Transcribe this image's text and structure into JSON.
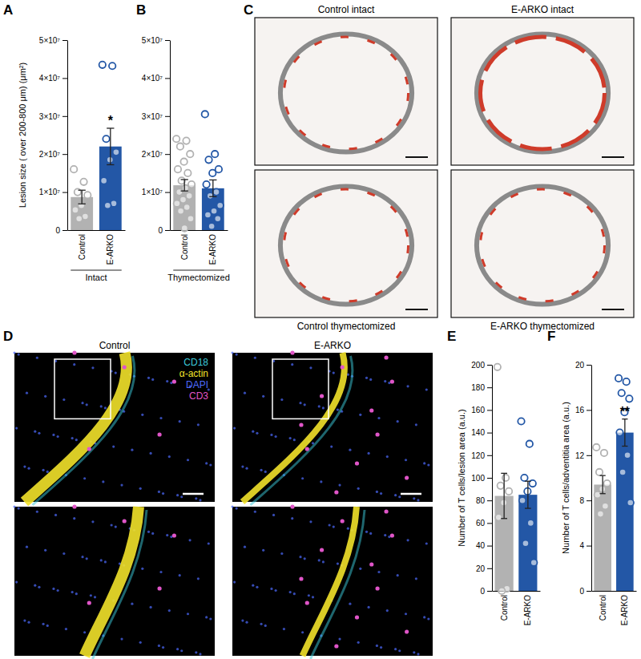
{
  "chart_data": [
    {
      "type": "bar",
      "title": "A",
      "categories": [
        "Control",
        "E-ARKO"
      ],
      "values": [
        8700000,
        22000000
      ],
      "errors": [
        1800000,
        4800000
      ],
      "points": [
        [
          16000000,
          12700000,
          10000000,
          9200000,
          6500000,
          5300000,
          3600000,
          3000000
        ],
        [
          43500000,
          43200000,
          24000000,
          20500000,
          18500000,
          13000000,
          7000000,
          6500000
        ]
      ],
      "colors": [
        "#b2b2b2",
        "#2357a6"
      ],
      "ylim": [
        0,
        50000000
      ],
      "yticks": [
        0,
        {
          "value": 10000000,
          "label": "1×10⁷"
        },
        {
          "value": 20000000,
          "label": "2×10⁷"
        },
        {
          "value": 30000000,
          "label": "3×10⁷"
        },
        {
          "value": 40000000,
          "label": "4×10⁷"
        },
        {
          "value": 50000000,
          "label": "5×10⁷"
        }
      ],
      "ylabel": "Lesion size ( over 200-800 μm) (μm²)",
      "xlabel": "Intact",
      "annotations": [
        {
          "text": "*",
          "x": "E-ARKO"
        }
      ]
    },
    {
      "type": "bar",
      "title": "B",
      "categories": [
        "Control",
        "E-ARKO"
      ],
      "values": [
        11800000,
        11000000
      ],
      "errors": [
        1500000,
        2200000
      ],
      "points": [
        [
          24000000,
          23500000,
          22000000,
          20000000,
          18000000,
          16000000,
          15000000,
          13000000,
          12000000,
          11000000,
          10000000,
          9000000,
          8000000,
          7000000,
          6000000,
          5000000,
          3000000,
          500000
        ],
        [
          30500000,
          20000000,
          18500000,
          16000000,
          15000000,
          12000000,
          10000000,
          9000000,
          6500000,
          5000000,
          4000000,
          3000000,
          1000000
        ]
      ],
      "colors": [
        "#b2b2b2",
        "#2357a6"
      ],
      "ylim": [
        0,
        50000000
      ],
      "yticks": [
        0,
        {
          "value": 10000000,
          "label": "1×10⁷"
        },
        {
          "value": 20000000,
          "label": "2×10⁷"
        },
        {
          "value": 30000000,
          "label": "3×10⁷"
        },
        {
          "value": 40000000,
          "label": "4×10⁷"
        },
        {
          "value": 50000000,
          "label": "5×10⁷"
        }
      ],
      "xlabel": "Thymectomized"
    },
    {
      "type": "bar",
      "title": "E",
      "categories": [
        "Control",
        "E-ARKO"
      ],
      "values": [
        84,
        85
      ],
      "errors": [
        20,
        12
      ],
      "points": [
        [
          198,
          100,
          93,
          88,
          78,
          65,
          2,
          0
        ],
        [
          150,
          130,
          100,
          95,
          88,
          80,
          60,
          42,
          25
        ]
      ],
      "colors": [
        "#b2b2b2",
        "#2357a6"
      ],
      "ylim": [
        0,
        200
      ],
      "yticks": [
        0,
        20,
        40,
        60,
        80,
        100,
        120,
        140,
        160,
        180,
        200
      ],
      "ylabel": "Number of T cells/lesion area (a.u.)"
    },
    {
      "type": "bar",
      "title": "F",
      "categories": [
        "Control",
        "E-ARKO"
      ],
      "values": [
        9.4,
        14
      ],
      "errors": [
        0.8,
        1.2
      ],
      "points": [
        [
          12.7,
          12.2,
          10.5,
          9.5,
          9,
          8.5,
          7.5,
          6.8
        ],
        [
          18.8,
          18.5,
          17.5,
          17,
          15.8,
          14,
          12,
          10.5,
          7.8
        ]
      ],
      "colors": [
        "#b2b2b2",
        "#2357a6"
      ],
      "ylim": [
        0,
        20
      ],
      "yticks": [
        0,
        4,
        8,
        12,
        16,
        20
      ],
      "ylabel": "Number of T cells/adventitia area (a.u.)",
      "annotations": [
        {
          "text": "**",
          "x": "E-ARKO"
        }
      ]
    }
  ],
  "image_panels": [
    {
      "label": "C",
      "captions": [
        "Control intact",
        "E-ARKO intact",
        "Control thymectomized",
        "E-ARKO thymectomized"
      ]
    },
    {
      "label": "D",
      "captions": [
        "Control",
        "E-ARKO"
      ],
      "legend": [
        {
          "text": "CD18",
          "color": "#3ccbdc"
        },
        {
          "text": "α-actin",
          "color": "#f2e22a"
        },
        {
          "text": "DAPI",
          "color": "#4d6bff"
        },
        {
          "text": "CD3",
          "color": "#e055c8"
        }
      ]
    }
  ]
}
